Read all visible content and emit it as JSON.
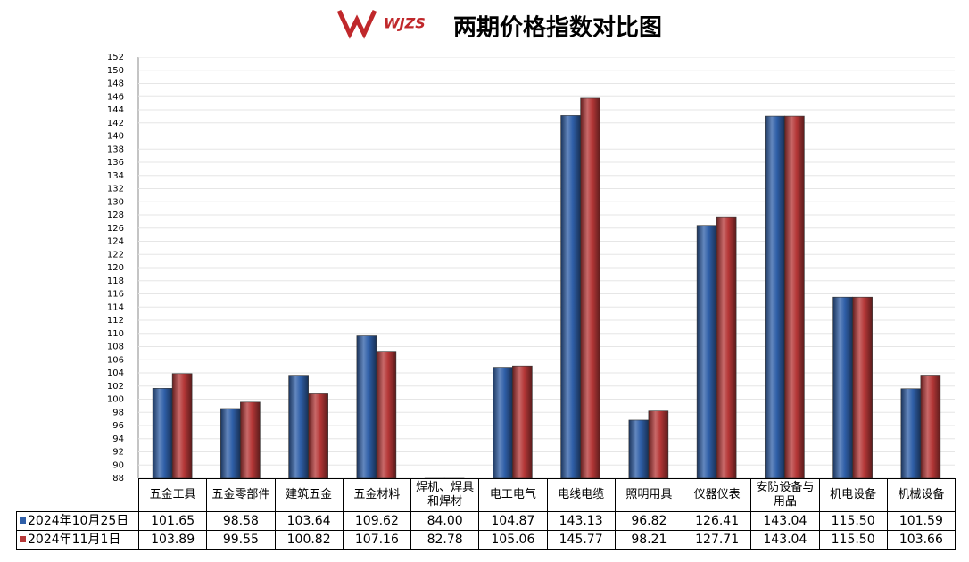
{
  "logo": "WJZS",
  "chart_data": {
    "type": "bar",
    "title": "两期价格指数对比图",
    "categories": [
      "五金工具",
      "五金零部件",
      "建筑五金",
      "五金材料",
      "焊机、焊具和焊材",
      "电工电气",
      "电线电缆",
      "照明用具",
      "仪器仪表",
      "安防设备与用品",
      "机电设备",
      "机械设备"
    ],
    "series": [
      {
        "name": "2024年10月25日",
        "color": "#2f5fa8",
        "values": [
          101.65,
          98.58,
          103.64,
          109.62,
          84.0,
          104.87,
          143.13,
          96.82,
          126.41,
          143.04,
          115.5,
          101.59
        ],
        "value_labels": [
          "101.65",
          "98.58",
          "103.64",
          "109.62",
          "84.00",
          "104.87",
          "143.13",
          "96.82",
          "126.41",
          "143.04",
          "115.50",
          "101.59"
        ]
      },
      {
        "name": "2024年11月1日",
        "color": "#b53737",
        "values": [
          103.89,
          99.55,
          100.82,
          107.16,
          82.78,
          105.06,
          145.77,
          98.21,
          127.71,
          143.04,
          115.5,
          103.66
        ],
        "value_labels": [
          "103.89",
          "99.55",
          "100.82",
          "107.16",
          "82.78",
          "105.06",
          "145.77",
          "98.21",
          "127.71",
          "143.04",
          "115.50",
          "103.66"
        ]
      }
    ],
    "ylim": [
      88,
      152
    ],
    "yticks": [
      88,
      90,
      92,
      94,
      96,
      98,
      100,
      102,
      104,
      106,
      108,
      110,
      112,
      114,
      116,
      118,
      120,
      122,
      124,
      126,
      128,
      130,
      132,
      134,
      136,
      138,
      140,
      142,
      144,
      146,
      148,
      150,
      152
    ],
    "grid": true
  }
}
